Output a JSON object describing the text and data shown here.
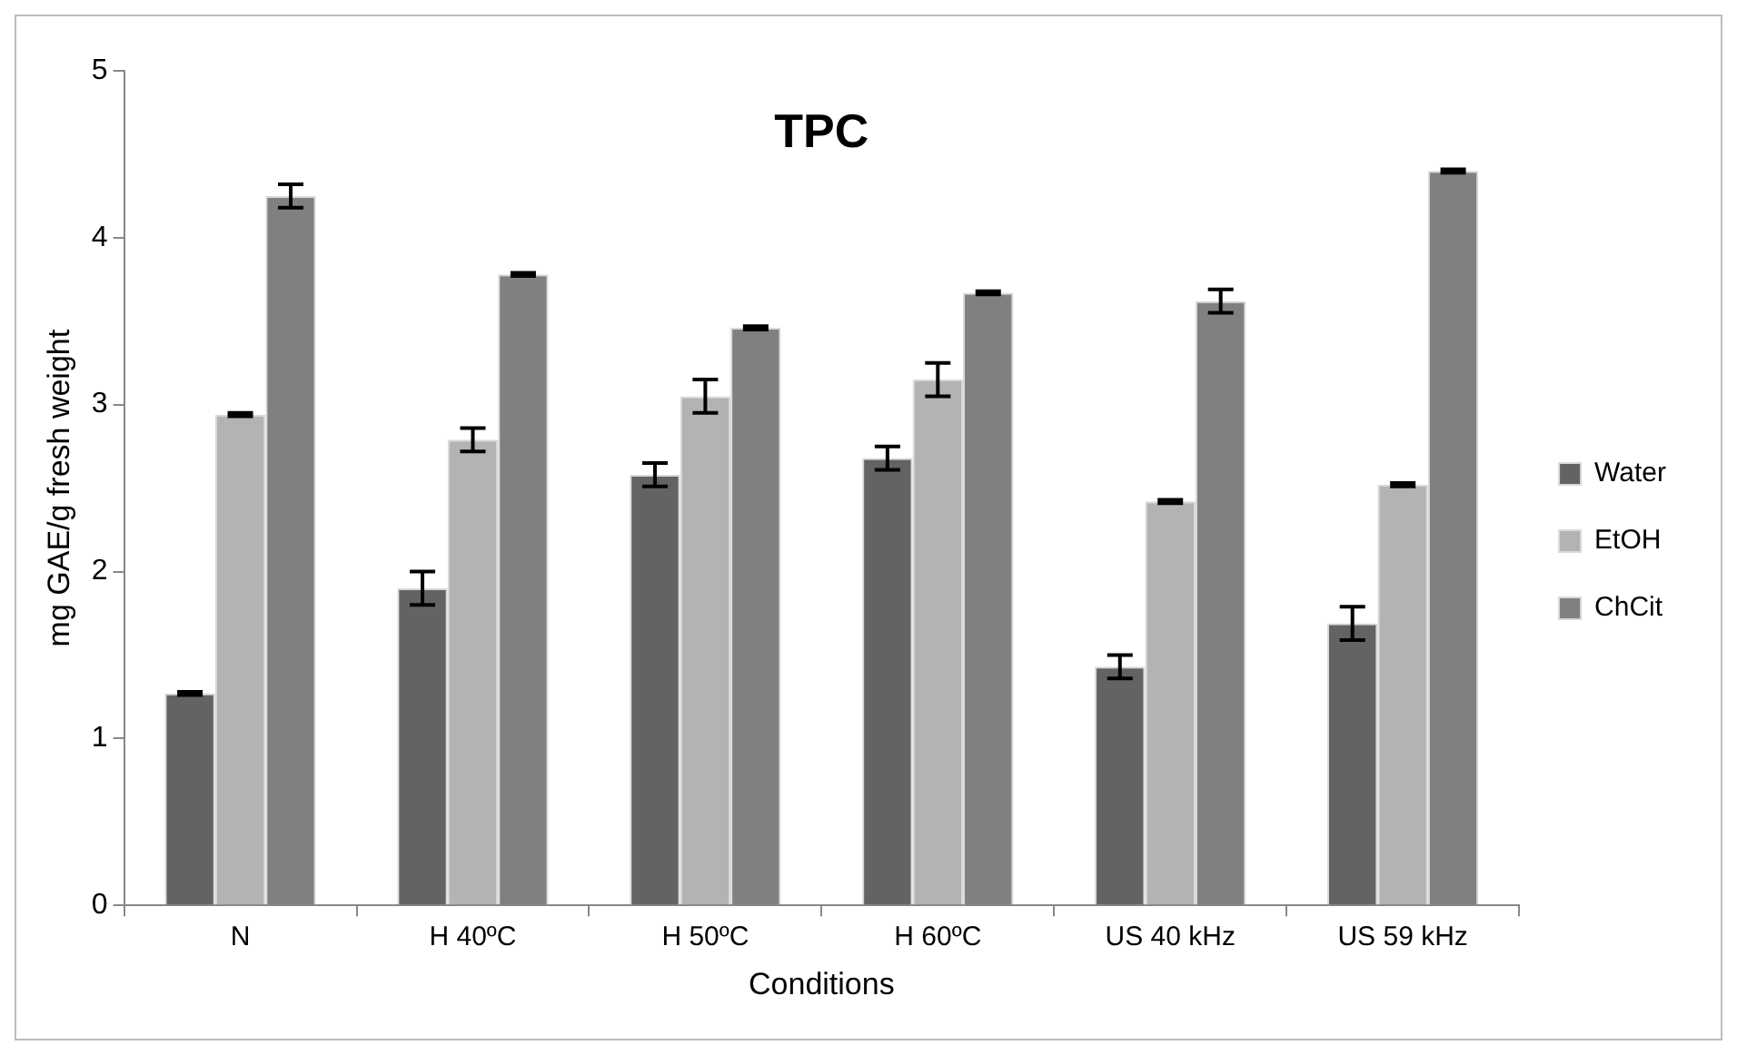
{
  "chart_data": {
    "type": "bar",
    "title": "TPC",
    "xlabel": "Conditions",
    "ylabel": "mg GAE/g fresh weight",
    "categories": [
      "N",
      "H 40ºC",
      "H 50ºC",
      "H 60ºC",
      "US 40 kHz",
      "US 59 kHz"
    ],
    "series": [
      {
        "name": "Water",
        "color": "#636363",
        "values": [
          1.27,
          1.9,
          2.58,
          2.68,
          1.43,
          1.69
        ],
        "errors": [
          0.01,
          0.1,
          0.07,
          0.07,
          0.07,
          0.1
        ]
      },
      {
        "name": "EtOH",
        "color": "#b3b3b3",
        "values": [
          2.94,
          2.79,
          3.05,
          3.15,
          2.42,
          2.52
        ],
        "errors": [
          0.01,
          0.07,
          0.1,
          0.1,
          0.01,
          0.01
        ]
      },
      {
        "name": "ChCit",
        "color": "#808080",
        "values": [
          4.25,
          3.78,
          3.46,
          3.67,
          3.62,
          4.4
        ],
        "errors": [
          0.07,
          0.01,
          0.01,
          0.01,
          0.07,
          0.01
        ]
      }
    ],
    "ylim": [
      0,
      5
    ],
    "yticks": [
      0,
      1,
      2,
      3,
      4,
      5
    ],
    "grid": false,
    "legend": "right"
  }
}
